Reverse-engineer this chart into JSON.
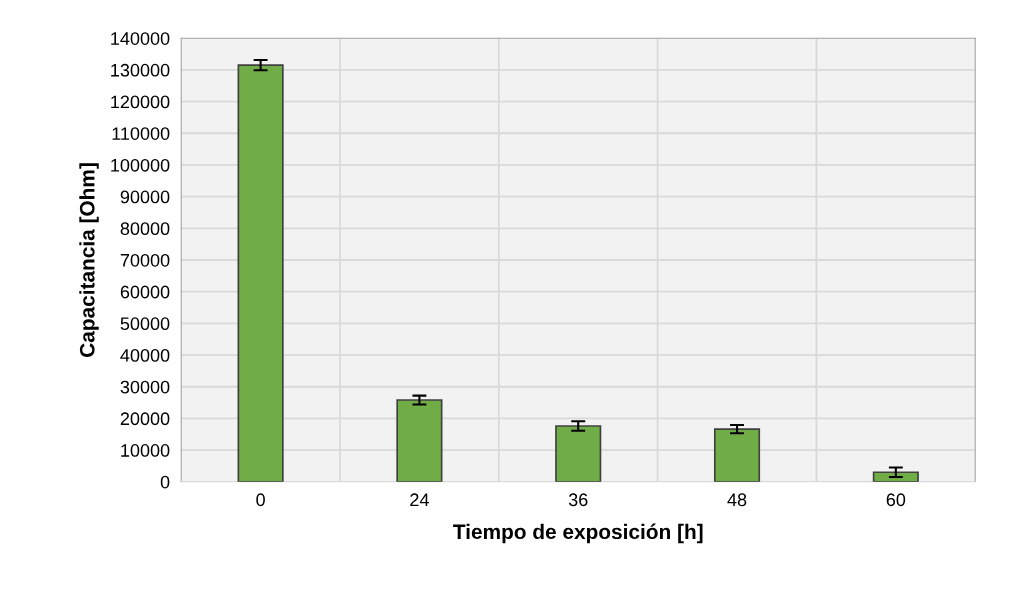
{
  "chart_data": {
    "type": "bar",
    "xlabel": "Tiempo de exposición [h]",
    "ylabel": "Capacitancia [Ohm]",
    "categories": [
      "0",
      "24",
      "36",
      "48",
      "60"
    ],
    "values": [
      131500,
      25800,
      17600,
      16600,
      3000
    ],
    "errors": [
      1600,
      1400,
      1500,
      1300,
      1500
    ],
    "color": "#70ad47",
    "ylim": [
      0,
      140000
    ],
    "yticks": [
      0,
      10000,
      20000,
      30000,
      40000,
      50000,
      60000,
      70000,
      80000,
      90000,
      100000,
      110000,
      120000,
      130000,
      140000
    ],
    "grid": true
  }
}
